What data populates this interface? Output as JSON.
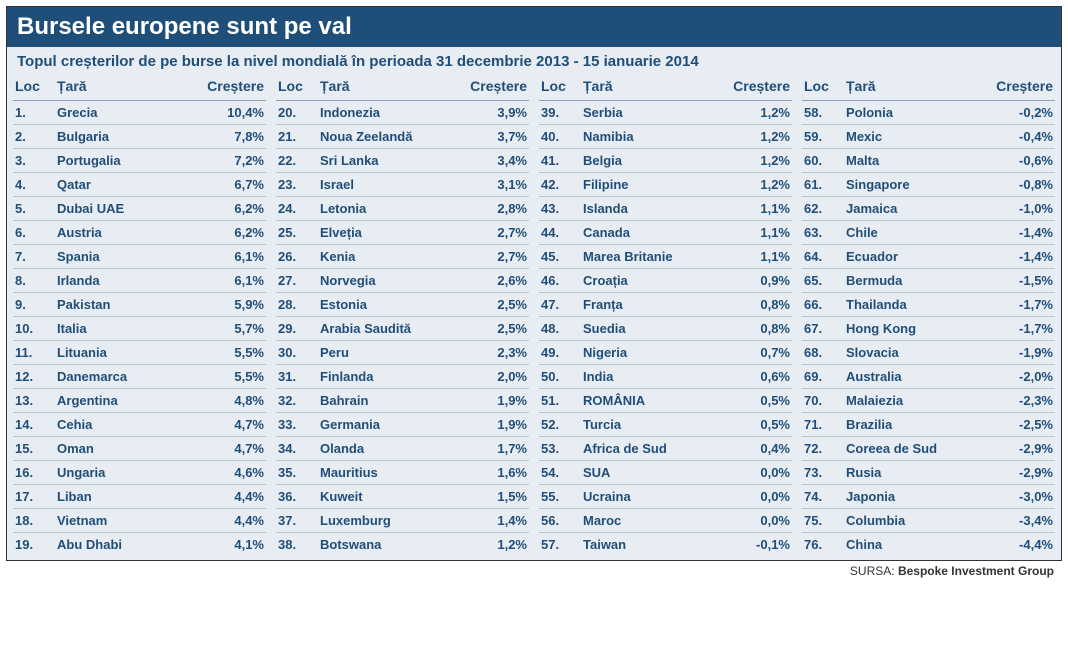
{
  "title": "Bursele europene sunt pe val",
  "subtitle": "Topul creșterilor de pe burse la nivel mondială în perioada 31 decembrie 2013 - 15 ianuarie 2014",
  "headers": {
    "rank": "Loc",
    "country": "Țară",
    "growth": "Creștere"
  },
  "source_label": "SURSA:",
  "source_name": "Bespoke Investment Group",
  "style": {
    "title_bg": "#1f4e79",
    "title_color": "#ffffff",
    "body_bg": "#e8ecf3",
    "text_color": "#1f4e79",
    "row_border": "#b8c4d6",
    "title_fontsize": 24,
    "subtitle_fontsize": 15,
    "header_fontsize": 14,
    "row_fontsize": 13,
    "source_fontsize": 12
  },
  "columns": [
    [
      {
        "rank": "1.",
        "country": "Grecia",
        "growth": "10,4%"
      },
      {
        "rank": "2.",
        "country": "Bulgaria",
        "growth": "7,8%"
      },
      {
        "rank": "3.",
        "country": "Portugalia",
        "growth": "7,2%"
      },
      {
        "rank": "4.",
        "country": "Qatar",
        "growth": "6,7%"
      },
      {
        "rank": "5.",
        "country": "Dubai UAE",
        "growth": "6,2%"
      },
      {
        "rank": "6.",
        "country": "Austria",
        "growth": "6,2%"
      },
      {
        "rank": "7.",
        "country": "Spania",
        "growth": "6,1%"
      },
      {
        "rank": "8.",
        "country": "Irlanda",
        "growth": "6,1%"
      },
      {
        "rank": "9.",
        "country": "Pakistan",
        "growth": "5,9%"
      },
      {
        "rank": "10.",
        "country": "Italia",
        "growth": "5,7%"
      },
      {
        "rank": "11.",
        "country": "Lituania",
        "growth": "5,5%"
      },
      {
        "rank": "12.",
        "country": "Danemarca",
        "growth": "5,5%"
      },
      {
        "rank": "13.",
        "country": "Argentina",
        "growth": "4,8%"
      },
      {
        "rank": "14.",
        "country": "Cehia",
        "growth": "4,7%"
      },
      {
        "rank": "15.",
        "country": "Oman",
        "growth": "4,7%"
      },
      {
        "rank": "16.",
        "country": "Ungaria",
        "growth": "4,6%"
      },
      {
        "rank": "17.",
        "country": "Liban",
        "growth": "4,4%"
      },
      {
        "rank": "18.",
        "country": "Vietnam",
        "growth": "4,4%"
      },
      {
        "rank": "19.",
        "country": "Abu Dhabi",
        "growth": "4,1%"
      }
    ],
    [
      {
        "rank": "20.",
        "country": "Indonezia",
        "growth": "3,9%"
      },
      {
        "rank": "21.",
        "country": "Noua Zeelandă",
        "growth": "3,7%"
      },
      {
        "rank": "22.",
        "country": "Sri Lanka",
        "growth": "3,4%"
      },
      {
        "rank": "23.",
        "country": "Israel",
        "growth": "3,1%"
      },
      {
        "rank": "24.",
        "country": "Letonia",
        "growth": "2,8%"
      },
      {
        "rank": "25.",
        "country": "Elveția",
        "growth": "2,7%"
      },
      {
        "rank": "26.",
        "country": "Kenia",
        "growth": "2,7%"
      },
      {
        "rank": "27.",
        "country": "Norvegia",
        "growth": "2,6%"
      },
      {
        "rank": "28.",
        "country": "Estonia",
        "growth": "2,5%"
      },
      {
        "rank": "29.",
        "country": "Arabia Saudită",
        "growth": "2,5%"
      },
      {
        "rank": "30.",
        "country": "Peru",
        "growth": "2,3%"
      },
      {
        "rank": "31.",
        "country": "Finlanda",
        "growth": "2,0%"
      },
      {
        "rank": "32.",
        "country": "Bahrain",
        "growth": "1,9%"
      },
      {
        "rank": "33.",
        "country": "Germania",
        "growth": "1,9%"
      },
      {
        "rank": "34.",
        "country": "Olanda",
        "growth": "1,7%"
      },
      {
        "rank": "35.",
        "country": "Mauritius",
        "growth": "1,6%"
      },
      {
        "rank": "36.",
        "country": "Kuweit",
        "growth": "1,5%"
      },
      {
        "rank": "37.",
        "country": "Luxemburg",
        "growth": "1,4%"
      },
      {
        "rank": "38.",
        "country": "Botswana",
        "growth": "1,2%"
      }
    ],
    [
      {
        "rank": "39.",
        "country": "Serbia",
        "growth": "1,2%"
      },
      {
        "rank": "40.",
        "country": "Namibia",
        "growth": "1,2%"
      },
      {
        "rank": "41.",
        "country": "Belgia",
        "growth": "1,2%"
      },
      {
        "rank": "42.",
        "country": "Filipine",
        "growth": "1,2%"
      },
      {
        "rank": "43.",
        "country": "Islanda",
        "growth": "1,1%"
      },
      {
        "rank": "44.",
        "country": "Canada",
        "growth": "1,1%"
      },
      {
        "rank": "45.",
        "country": "Marea Britanie",
        "growth": "1,1%"
      },
      {
        "rank": "46.",
        "country": "Croația",
        "growth": "0,9%"
      },
      {
        "rank": "47.",
        "country": "Franța",
        "growth": "0,8%"
      },
      {
        "rank": "48.",
        "country": "Suedia",
        "growth": "0,8%"
      },
      {
        "rank": "49.",
        "country": "Nigeria",
        "growth": "0,7%"
      },
      {
        "rank": "50.",
        "country": "India",
        "growth": "0,6%"
      },
      {
        "rank": "51.",
        "country": "ROMÂNIA",
        "growth": "0,5%"
      },
      {
        "rank": "52.",
        "country": "Turcia",
        "growth": "0,5%"
      },
      {
        "rank": "53.",
        "country": "Africa de Sud",
        "growth": "0,4%"
      },
      {
        "rank": "54.",
        "country": "SUA",
        "growth": "0,0%"
      },
      {
        "rank": "55.",
        "country": "Ucraina",
        "growth": "0,0%"
      },
      {
        "rank": "56.",
        "country": "Maroc",
        "growth": "0,0%"
      },
      {
        "rank": "57.",
        "country": "Taiwan",
        "growth": "-0,1%"
      }
    ],
    [
      {
        "rank": "58.",
        "country": "Polonia",
        "growth": "-0,2%"
      },
      {
        "rank": "59.",
        "country": "Mexic",
        "growth": "-0,4%"
      },
      {
        "rank": "60.",
        "country": "Malta",
        "growth": "-0,6%"
      },
      {
        "rank": "61.",
        "country": "Singapore",
        "growth": "-0,8%"
      },
      {
        "rank": "62.",
        "country": "Jamaica",
        "growth": "-1,0%"
      },
      {
        "rank": "63.",
        "country": "Chile",
        "growth": "-1,4%"
      },
      {
        "rank": "64.",
        "country": "Ecuador",
        "growth": "-1,4%"
      },
      {
        "rank": "65.",
        "country": "Bermuda",
        "growth": "-1,5%"
      },
      {
        "rank": "66.",
        "country": "Thailanda",
        "growth": "-1,7%"
      },
      {
        "rank": "67.",
        "country": "Hong Kong",
        "growth": "-1,7%"
      },
      {
        "rank": "68.",
        "country": "Slovacia",
        "growth": "-1,9%"
      },
      {
        "rank": "69.",
        "country": "Australia",
        "growth": "-2,0%"
      },
      {
        "rank": "70.",
        "country": "Malaiezia",
        "growth": "-2,3%"
      },
      {
        "rank": "71.",
        "country": "Brazilia",
        "growth": "-2,5%"
      },
      {
        "rank": "72.",
        "country": "Coreea de Sud",
        "growth": "-2,9%"
      },
      {
        "rank": "73.",
        "country": "Rusia",
        "growth": "-2,9%"
      },
      {
        "rank": "74.",
        "country": "Japonia",
        "growth": "-3,0%"
      },
      {
        "rank": "75.",
        "country": "Columbia",
        "growth": "-3,4%"
      },
      {
        "rank": "76.",
        "country": "China",
        "growth": "-4,4%"
      }
    ]
  ]
}
